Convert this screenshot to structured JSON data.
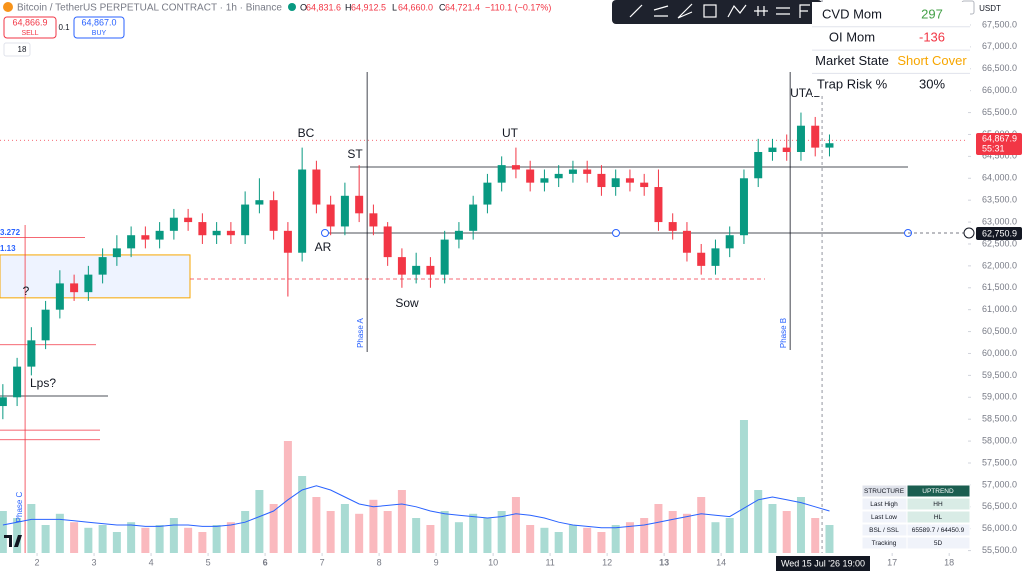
{
  "header": {
    "symbol": "Bitcoin / TetherUS PERPETUAL CONTRACT · 1h · Binance",
    "ohlc": [
      "O",
      "64,831.6",
      "H",
      "64,912.5",
      "L",
      "64,660.0",
      "C",
      "64,721.4",
      "−110.1 (−0.17%)"
    ],
    "sell_price": "64,866.9",
    "sell": "SELL",
    "qty": "0.1",
    "buy_price": "64,867.0",
    "buy": "BUY",
    "count": "18",
    "currency": "USDT"
  },
  "stats_table": {
    "rows": [
      [
        "CVD Mom",
        "297"
      ],
      [
        "OI Mom",
        "-136"
      ],
      [
        "Market State",
        "Short Cover"
      ],
      [
        "Trap Risk %",
        "30%"
      ]
    ]
  },
  "structure_table": {
    "rows": [
      [
        "STRUCTURE",
        "UPTREND"
      ],
      [
        "Last High",
        "HH"
      ],
      [
        "Last Low",
        "HL"
      ],
      [
        "BSL / SSL",
        "65589.7 / 64450.9"
      ],
      [
        "Tracking",
        "5D"
      ]
    ]
  },
  "chart_data": {
    "type": "candlestick",
    "x": [
      1.4,
      1.65,
      1.9,
      2.15,
      2.4,
      2.65,
      2.9,
      3.15,
      3.4,
      3.65,
      3.9,
      4.15,
      4.4,
      4.65,
      4.9,
      5.15,
      5.4,
      5.65,
      5.9,
      6.15,
      6.4,
      6.65,
      6.9,
      7.15,
      7.4,
      7.65,
      7.9,
      8.15,
      8.4,
      8.65,
      8.9,
      9.15,
      9.4,
      9.65,
      9.9,
      10.15,
      10.4,
      10.65,
      10.9,
      11.15,
      11.4,
      11.65,
      11.9,
      12.15,
      12.4,
      12.65,
      12.9,
      13.15,
      13.4,
      13.65,
      13.9,
      14.15,
      14.4,
      14.65,
      14.9,
      15.15,
      15.4,
      15.65,
      15.9
    ],
    "open": [
      58800,
      59000,
      59700,
      60300,
      61000,
      61600,
      61400,
      61800,
      62200,
      62400,
      62700,
      62600,
      62800,
      63100,
      63000,
      62700,
      62800,
      62700,
      63400,
      63500,
      62800,
      62300,
      64200,
      63400,
      62900,
      63600,
      63200,
      62900,
      62200,
      61800,
      62000,
      61800,
      62600,
      62800,
      63400,
      63900,
      64300,
      64200,
      63900,
      64000,
      64100,
      64200,
      64100,
      63800,
      64000,
      63900,
      63800,
      63000,
      62800,
      62300,
      62000,
      62400,
      62700,
      64000,
      64600,
      64700,
      64600,
      65200,
      64700
    ],
    "high": [
      59300,
      59900,
      60600,
      61200,
      61900,
      61800,
      62000,
      62400,
      62700,
      62900,
      62900,
      63000,
      63300,
      63300,
      63200,
      63000,
      63000,
      63700,
      64000,
      63700,
      63000,
      64700,
      64400,
      63600,
      63900,
      64300,
      63400,
      63000,
      62400,
      62300,
      62200,
      62800,
      63000,
      63600,
      64100,
      64500,
      64700,
      64400,
      64200,
      64300,
      64400,
      64400,
      64300,
      64200,
      64200,
      64100,
      64200,
      63200,
      63000,
      62500,
      62600,
      62900,
      64200,
      64900,
      64900,
      65000,
      65500,
      65400,
      65000
    ],
    "low": [
      58500,
      58800,
      59500,
      60100,
      60800,
      61200,
      61200,
      61600,
      62000,
      62200,
      62400,
      62400,
      62600,
      62800,
      62500,
      62500,
      62500,
      62500,
      63200,
      62600,
      61300,
      62100,
      63200,
      62700,
      62700,
      63000,
      62700,
      62000,
      61500,
      61600,
      61500,
      61600,
      62400,
      62600,
      63200,
      63700,
      64000,
      63700,
      63700,
      63800,
      63900,
      63900,
      63600,
      63600,
      63700,
      63600,
      62800,
      62600,
      62100,
      61800,
      61800,
      62200,
      62500,
      63800,
      64400,
      64400,
      64400,
      64500,
      64500
    ],
    "close": [
      59000,
      59700,
      60300,
      61000,
      61600,
      61400,
      61800,
      62200,
      62400,
      62700,
      62600,
      62800,
      63100,
      63000,
      62700,
      62800,
      62700,
      63400,
      63500,
      62800,
      62300,
      64200,
      63400,
      62900,
      63600,
      63200,
      62900,
      62200,
      61800,
      62000,
      61800,
      62600,
      62800,
      63400,
      63900,
      64300,
      64200,
      63900,
      64000,
      64100,
      64200,
      64100,
      63800,
      64000,
      63900,
      63800,
      63000,
      62800,
      62300,
      62000,
      62400,
      62700,
      64000,
      64600,
      64700,
      64600,
      65200,
      64700,
      64800
    ],
    "volume": [
      30,
      25,
      35,
      20,
      28,
      22,
      18,
      20,
      15,
      22,
      18,
      20,
      25,
      18,
      15,
      20,
      22,
      30,
      45,
      35,
      80,
      55,
      40,
      30,
      35,
      28,
      38,
      30,
      45,
      25,
      20,
      30,
      22,
      28,
      25,
      30,
      40,
      20,
      18,
      15,
      20,
      18,
      15,
      20,
      22,
      25,
      35,
      30,
      28,
      40,
      22,
      25,
      95,
      45,
      35,
      30,
      40,
      25,
      20
    ],
    "volume_ma": [
      20,
      22,
      24,
      24,
      24,
      23,
      22,
      21,
      20,
      20,
      19,
      19,
      20,
      20,
      19,
      19,
      20,
      22,
      26,
      30,
      38,
      45,
      48,
      45,
      40,
      35,
      33,
      34,
      35,
      33,
      30,
      28,
      27,
      26,
      25,
      26,
      28,
      27,
      25,
      22,
      20,
      19,
      18,
      18,
      19,
      20,
      22,
      24,
      26,
      28,
      27,
      26,
      32,
      38,
      40,
      38,
      36,
      33,
      30
    ],
    "volume_ylim": [
      0,
      100
    ],
    "up_color": "#089981",
    "down_color": "#f23645",
    "ma_color": "#2962ff",
    "ylim": [
      55445,
      68070
    ],
    "xlim": [
      1.35,
      18.33
    ],
    "yticks": [
      {
        "value": 55500,
        "label": "55,500.0"
      },
      {
        "value": 56000,
        "label": "56,000.0"
      },
      {
        "value": 56500,
        "label": "56,500.0"
      },
      {
        "value": 57000,
        "label": "57,000.0"
      },
      {
        "value": 57500,
        "label": "57,500.0"
      },
      {
        "value": 58000,
        "label": "58,000.0"
      },
      {
        "value": 58500,
        "label": "58,500.0"
      },
      {
        "value": 59000,
        "label": "59,000.0"
      },
      {
        "value": 59500,
        "label": "59,500.0"
      },
      {
        "value": 60000,
        "label": "60,000.0"
      },
      {
        "value": 60500,
        "label": "60,500.0"
      },
      {
        "value": 61000,
        "label": "61,000.0"
      },
      {
        "value": 61500,
        "label": "61,500.0"
      },
      {
        "value": 62000,
        "label": "62,000.0"
      },
      {
        "value": 62500,
        "label": "62,500.0"
      },
      {
        "value": 63000,
        "label": "63,000.0"
      },
      {
        "value": 63500,
        "label": "63,500.0"
      },
      {
        "value": 64000,
        "label": "64,000.0"
      },
      {
        "value": 64500,
        "label": "64,500.0"
      },
      {
        "value": 65000,
        "label": "65,000.0"
      },
      {
        "value": 65500,
        "label": "65,500.0"
      },
      {
        "value": 66000,
        "label": "66,000.0"
      },
      {
        "value": 66500,
        "label": "66,500.0"
      },
      {
        "value": 67000,
        "label": "67,000.0"
      },
      {
        "value": 67500,
        "label": "67,500.0"
      }
    ],
    "xticks": [
      2,
      3,
      4,
      5,
      6,
      7,
      8,
      9,
      10,
      11,
      12,
      13,
      14,
      17,
      18
    ],
    "hlines": [
      64258,
      62750.9,
      61700,
      62650,
      60200,
      59030,
      58250,
      58030
    ],
    "zone": [
      61270,
      62250
    ],
    "phase_lines": [
      7.79,
      15.21,
      1.79,
      15.77
    ],
    "annotations": [
      "BC",
      "ST",
      "UT",
      "UTAD",
      "AR",
      "Sow",
      "Lps?",
      "?",
      "Phase A",
      "Phase B",
      "Phase C"
    ],
    "price_labels": [
      "64,867.9",
      "55:31",
      "62,750.9"
    ],
    "crosshair_label": "Wed 15 Jul '26 19:00",
    "left_labels": [
      "3.272",
      "1.13"
    ]
  }
}
